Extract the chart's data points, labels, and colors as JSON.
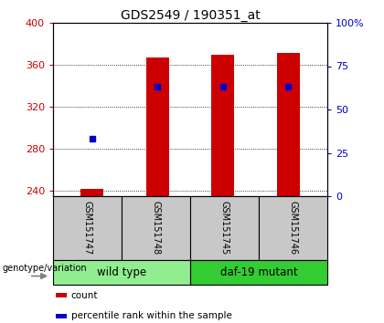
{
  "title": "GDS2549 / 190351_at",
  "samples": [
    "GSM151747",
    "GSM151748",
    "GSM151745",
    "GSM151746"
  ],
  "counts": [
    242,
    367,
    370,
    371
  ],
  "percentile_ranks": [
    33,
    63,
    63,
    63
  ],
  "ylim_left": [
    235,
    400
  ],
  "ylim_right": [
    0,
    100
  ],
  "yticks_left": [
    240,
    280,
    320,
    360,
    400
  ],
  "yticks_right": [
    0,
    25,
    50,
    75,
    100
  ],
  "groups": [
    {
      "label": "wild type",
      "indices": [
        0,
        1
      ],
      "color": "#90EE90"
    },
    {
      "label": "daf-19 mutant",
      "indices": [
        2,
        3
      ],
      "color": "#33CC33"
    }
  ],
  "genotype_label": "genotype/variation",
  "bar_color": "#CC0000",
  "dot_color": "#0000CC",
  "left_axis_color": "#CC0000",
  "right_axis_color": "#0000CC",
  "grid_color": "#000000",
  "plot_bg_color": "#FFFFFF",
  "sample_box_color": "#C8C8C8",
  "legend_items": [
    {
      "color": "#CC0000",
      "label": "count"
    },
    {
      "color": "#0000CC",
      "label": "percentile rank within the sample"
    }
  ]
}
